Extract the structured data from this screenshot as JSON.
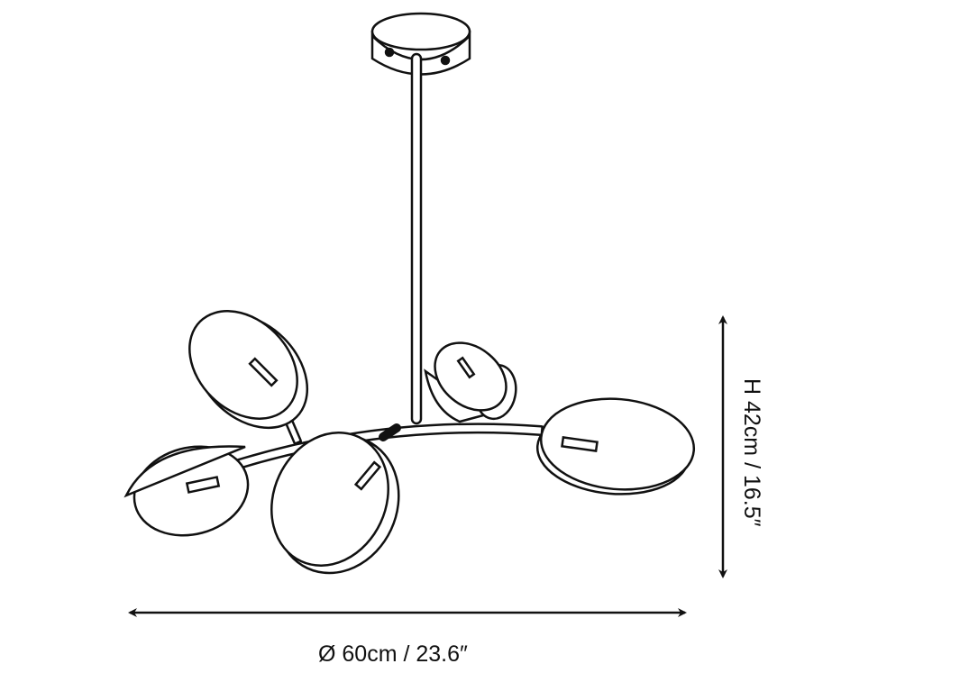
{
  "dimensions": {
    "width_label": "Ø 60cm / 23.6″",
    "height_label": "H 42cm / 16.5″"
  },
  "colors": {
    "line": "#111111",
    "background": "#ffffff"
  }
}
